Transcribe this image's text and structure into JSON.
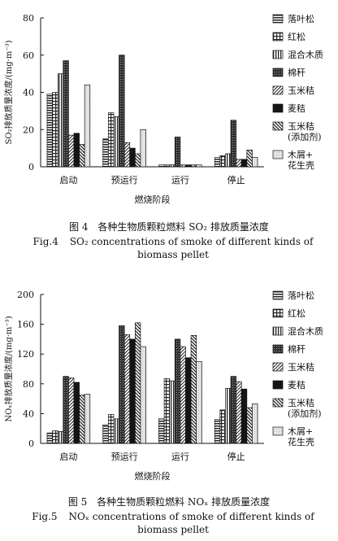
{
  "figures": [
    {
      "caption_zh_num": "图 4",
      "caption_zh": "各种生物质颗粒燃料 SO₂ 排放质量浓度",
      "caption_en_num": "Fig.4",
      "caption_en": "SO₂ concentrations of smoke of different kinds of biomass pellet"
    },
    {
      "caption_zh_num": "图 5",
      "caption_zh": "各种生物质颗粒燃料 NOₓ 排放质量浓度",
      "caption_en_num": "Fig.5",
      "caption_en": "NOₓ concentrations of smoke of different kinds of biomass pellet"
    }
  ],
  "chart_data": [
    {
      "type": "bar",
      "title": "",
      "ylabel": "SO₂排放质量浓度/(mg·m⁻³)",
      "xlabel": "燃烧阶段",
      "ylim": [
        0,
        80
      ],
      "yticks": [
        0,
        20,
        40,
        60,
        80
      ],
      "categories": [
        "启动",
        "预运行",
        "运行",
        "停止"
      ],
      "legend_position": "right",
      "series": [
        {
          "name": "落叶松",
          "pattern": "hstripe",
          "values": [
            39,
            15,
            1,
            5
          ]
        },
        {
          "name": "红松",
          "pattern": "grid",
          "values": [
            40,
            29,
            1,
            6
          ]
        },
        {
          "name": "混合木质",
          "pattern": "vstripe",
          "values": [
            50,
            27,
            1,
            7
          ]
        },
        {
          "name": "棉秆",
          "pattern": "dense",
          "values": [
            57,
            60,
            16,
            25
          ]
        },
        {
          "name": "玉米秸",
          "pattern": "diagonal",
          "values": [
            17,
            13,
            1,
            4
          ]
        },
        {
          "name": "麦秸",
          "pattern": "solid",
          "values": [
            18,
            10,
            1,
            4
          ]
        },
        {
          "name": "玉米秸\n(添加剂)",
          "pattern": "backdiag",
          "values": [
            12,
            7,
            1,
            9
          ]
        },
        {
          "name": "木屑+\n花生壳",
          "pattern": "light",
          "values": [
            44,
            20,
            1,
            5
          ]
        }
      ]
    },
    {
      "type": "bar",
      "title": "",
      "ylabel": "NOₓ排放质量浓度/(mg·m⁻³)",
      "xlabel": "燃烧阶段",
      "ylim": [
        0,
        200
      ],
      "yticks": [
        0,
        40,
        80,
        120,
        160,
        200
      ],
      "categories": [
        "启动",
        "预运行",
        "运行",
        "停止"
      ],
      "legend_position": "right",
      "series": [
        {
          "name": "落叶松",
          "pattern": "hstripe",
          "values": [
            14,
            25,
            33,
            32
          ]
        },
        {
          "name": "红松",
          "pattern": "grid",
          "values": [
            17,
            39,
            87,
            45
          ]
        },
        {
          "name": "混合木质",
          "pattern": "vstripe",
          "values": [
            16,
            33,
            84,
            74
          ]
        },
        {
          "name": "棉秆",
          "pattern": "dense",
          "values": [
            90,
            158,
            140,
            90
          ]
        },
        {
          "name": "玉米秸",
          "pattern": "diagonal",
          "values": [
            88,
            146,
            130,
            83
          ]
        },
        {
          "name": "麦秸",
          "pattern": "solid",
          "values": [
            82,
            140,
            115,
            73
          ]
        },
        {
          "name": "玉米秸\n(添加剂)",
          "pattern": "backdiag",
          "values": [
            65,
            162,
            145,
            48
          ]
        },
        {
          "name": "木屑+\n花生壳",
          "pattern": "light",
          "values": [
            66,
            130,
            110,
            53
          ]
        }
      ]
    }
  ]
}
